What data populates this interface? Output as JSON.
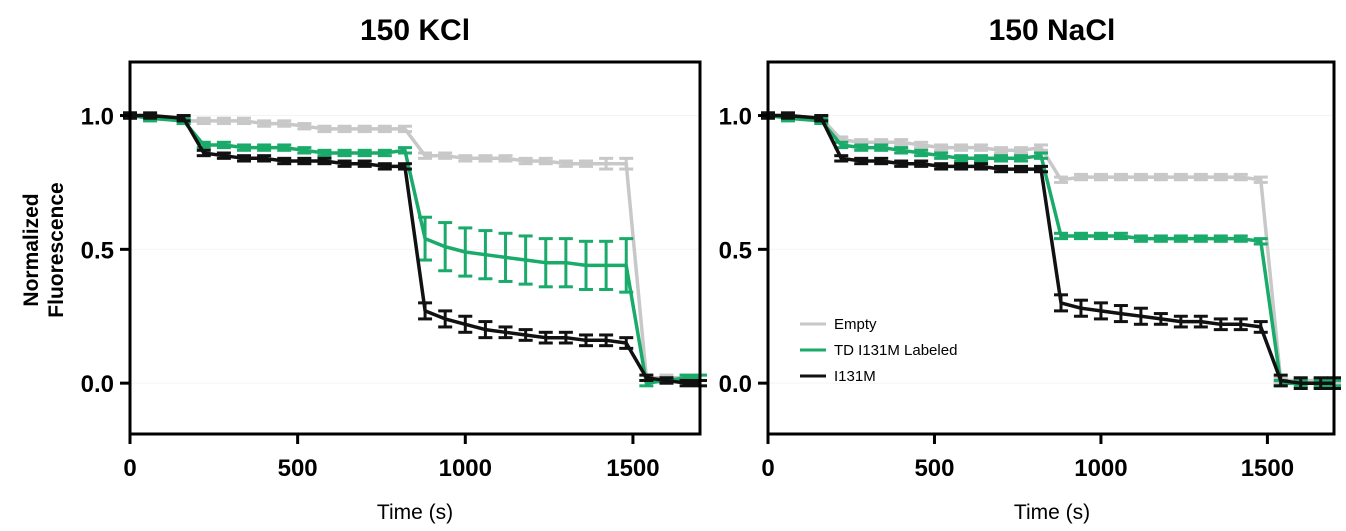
{
  "colors": {
    "Empty": "#c8c8c8",
    "TD I131M Labeled": "#1aaa6a",
    "I131M": "#111111"
  },
  "ylabel_lines": [
    "Normalized",
    "Fluorescence"
  ],
  "chart_data": [
    {
      "type": "line",
      "title": "150 KCl",
      "xlabel": "Time (s)",
      "ylabel": "Normalized Fluorescence",
      "xlim": [
        0,
        1700
      ],
      "ylim": [
        -0.19,
        1.2
      ],
      "xticks": [
        0,
        500,
        1000,
        1500
      ],
      "xtick_labels": [
        "0",
        "500",
        "1000",
        "1500"
      ],
      "yticks": [
        0,
        0.5,
        1
      ],
      "ytick_labels": [
        "0.0",
        "0.5",
        "1.0"
      ],
      "legend": "none",
      "series": [
        {
          "name": "Empty",
          "x": [
            0,
            60,
            160,
            220,
            280,
            340,
            400,
            460,
            520,
            580,
            640,
            700,
            760,
            820,
            880,
            940,
            1000,
            1060,
            1120,
            1180,
            1240,
            1300,
            1360,
            1420,
            1480,
            1540,
            1600,
            1660,
            1700
          ],
          "y": [
            1.0,
            0.99,
            0.98,
            0.98,
            0.98,
            0.98,
            0.97,
            0.97,
            0.96,
            0.95,
            0.95,
            0.95,
            0.95,
            0.95,
            0.85,
            0.85,
            0.84,
            0.84,
            0.84,
            0.83,
            0.83,
            0.82,
            0.82,
            0.82,
            0.82,
            0.02,
            0.02,
            0.02,
            0.02
          ],
          "err": [
            0.01,
            0.01,
            0.01,
            0.01,
            0.01,
            0.01,
            0.01,
            0.01,
            0.01,
            0.01,
            0.01,
            0.01,
            0.01,
            0.01,
            0.01,
            0.01,
            0.01,
            0.01,
            0.01,
            0.01,
            0.01,
            0.01,
            0.01,
            0.02,
            0.02,
            0.01,
            0.01,
            0.01,
            0.01
          ]
        },
        {
          "name": "TD I131M Labeled",
          "x": [
            0,
            60,
            160,
            220,
            280,
            340,
            400,
            460,
            520,
            580,
            640,
            700,
            760,
            820,
            880,
            940,
            1000,
            1060,
            1120,
            1180,
            1240,
            1300,
            1360,
            1420,
            1480,
            1540,
            1600,
            1660,
            1700
          ],
          "y": [
            1.0,
            0.99,
            0.98,
            0.89,
            0.89,
            0.88,
            0.88,
            0.88,
            0.87,
            0.86,
            0.86,
            0.86,
            0.86,
            0.87,
            0.54,
            0.51,
            0.49,
            0.48,
            0.47,
            0.46,
            0.45,
            0.45,
            0.44,
            0.44,
            0.44,
            0.0,
            0.01,
            0.02,
            0.02
          ],
          "err": [
            0.01,
            0.01,
            0.01,
            0.01,
            0.01,
            0.01,
            0.01,
            0.01,
            0.01,
            0.01,
            0.01,
            0.01,
            0.01,
            0.01,
            0.08,
            0.09,
            0.09,
            0.09,
            0.09,
            0.09,
            0.09,
            0.09,
            0.09,
            0.09,
            0.1,
            0.01,
            0.01,
            0.01,
            0.01
          ]
        },
        {
          "name": "I131M",
          "x": [
            0,
            60,
            160,
            220,
            280,
            340,
            400,
            460,
            520,
            580,
            640,
            700,
            760,
            820,
            880,
            940,
            1000,
            1060,
            1120,
            1180,
            1240,
            1300,
            1360,
            1420,
            1480,
            1540,
            1600,
            1660,
            1700
          ],
          "y": [
            1.0,
            1.0,
            0.99,
            0.86,
            0.85,
            0.84,
            0.84,
            0.83,
            0.83,
            0.83,
            0.82,
            0.82,
            0.81,
            0.81,
            0.27,
            0.24,
            0.22,
            0.2,
            0.19,
            0.18,
            0.17,
            0.17,
            0.16,
            0.16,
            0.15,
            0.02,
            0.01,
            0.0,
            0.0
          ],
          "err": [
            0.01,
            0.01,
            0.01,
            0.01,
            0.01,
            0.01,
            0.01,
            0.01,
            0.01,
            0.01,
            0.01,
            0.01,
            0.01,
            0.01,
            0.03,
            0.03,
            0.03,
            0.03,
            0.02,
            0.02,
            0.02,
            0.02,
            0.02,
            0.02,
            0.02,
            0.01,
            0.01,
            0.01,
            0.01
          ]
        }
      ]
    },
    {
      "type": "line",
      "title": "150 NaCl",
      "xlabel": "Time (s)",
      "ylabel": "",
      "xlim": [
        0,
        1700
      ],
      "ylim": [
        -0.19,
        1.2
      ],
      "xticks": [
        0,
        500,
        1000,
        1500
      ],
      "xtick_labels": [
        "0",
        "500",
        "1000",
        "1500"
      ],
      "yticks": [
        0,
        0.5,
        1
      ],
      "ytick_labels": [
        "0.0",
        "0.5",
        "1.0"
      ],
      "legend": "lower-left",
      "series": [
        {
          "name": "Empty",
          "x": [
            0,
            60,
            160,
            220,
            280,
            340,
            400,
            460,
            520,
            580,
            640,
            700,
            760,
            820,
            880,
            940,
            1000,
            1060,
            1120,
            1180,
            1240,
            1300,
            1360,
            1420,
            1480,
            1540,
            1600,
            1660,
            1700
          ],
          "y": [
            1.0,
            1.0,
            0.99,
            0.91,
            0.9,
            0.9,
            0.9,
            0.89,
            0.88,
            0.88,
            0.88,
            0.87,
            0.87,
            0.88,
            0.76,
            0.77,
            0.77,
            0.77,
            0.77,
            0.77,
            0.77,
            0.77,
            0.77,
            0.77,
            0.76,
            0.01,
            0.01,
            0.01,
            0.01
          ],
          "err": [
            0.01,
            0.01,
            0.01,
            0.01,
            0.01,
            0.01,
            0.01,
            0.01,
            0.01,
            0.01,
            0.01,
            0.01,
            0.01,
            0.01,
            0.01,
            0.01,
            0.01,
            0.01,
            0.01,
            0.01,
            0.01,
            0.01,
            0.01,
            0.01,
            0.01,
            0.01,
            0.01,
            0.01,
            0.01
          ]
        },
        {
          "name": "TD I131M Labeled",
          "x": [
            0,
            60,
            160,
            220,
            280,
            340,
            400,
            460,
            520,
            580,
            640,
            700,
            760,
            820,
            880,
            940,
            1000,
            1060,
            1120,
            1180,
            1240,
            1300,
            1360,
            1420,
            1480,
            1540,
            1600,
            1660,
            1700
          ],
          "y": [
            1.0,
            0.99,
            0.98,
            0.89,
            0.88,
            0.88,
            0.87,
            0.86,
            0.85,
            0.84,
            0.84,
            0.84,
            0.84,
            0.85,
            0.55,
            0.55,
            0.55,
            0.55,
            0.54,
            0.54,
            0.54,
            0.54,
            0.54,
            0.54,
            0.53,
            0.0,
            0.0,
            0.0,
            0.0
          ],
          "err": [
            0.01,
            0.01,
            0.01,
            0.01,
            0.01,
            0.01,
            0.01,
            0.01,
            0.01,
            0.01,
            0.01,
            0.01,
            0.01,
            0.01,
            0.01,
            0.01,
            0.01,
            0.01,
            0.01,
            0.01,
            0.01,
            0.01,
            0.01,
            0.01,
            0.01,
            0.01,
            0.01,
            0.01,
            0.01
          ]
        },
        {
          "name": "I131M",
          "x": [
            0,
            60,
            160,
            220,
            280,
            340,
            400,
            460,
            520,
            580,
            640,
            700,
            760,
            820,
            880,
            940,
            1000,
            1060,
            1120,
            1180,
            1240,
            1300,
            1360,
            1420,
            1480,
            1540,
            1600,
            1660,
            1700
          ],
          "y": [
            1.0,
            1.0,
            0.99,
            0.84,
            0.83,
            0.83,
            0.82,
            0.82,
            0.81,
            0.81,
            0.81,
            0.8,
            0.8,
            0.8,
            0.3,
            0.28,
            0.27,
            0.26,
            0.25,
            0.24,
            0.23,
            0.23,
            0.22,
            0.22,
            0.21,
            0.01,
            0.0,
            0.0,
            0.0
          ],
          "err": [
            0.01,
            0.01,
            0.01,
            0.01,
            0.01,
            0.01,
            0.01,
            0.01,
            0.01,
            0.01,
            0.01,
            0.01,
            0.01,
            0.01,
            0.03,
            0.03,
            0.03,
            0.03,
            0.03,
            0.02,
            0.02,
            0.02,
            0.02,
            0.02,
            0.02,
            0.02,
            0.02,
            0.02,
            0.02
          ]
        }
      ]
    }
  ]
}
